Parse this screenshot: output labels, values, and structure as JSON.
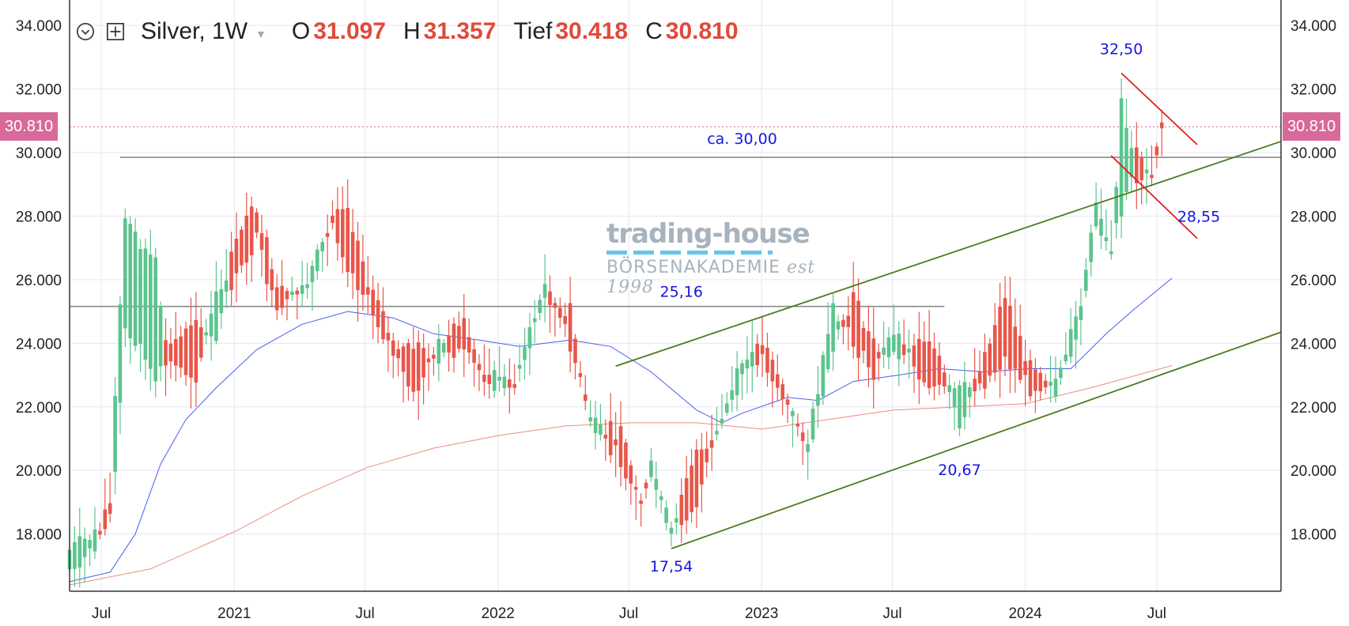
{
  "legend": {
    "symbol": "Silver, 1W",
    "o_label": "O",
    "o_value": "31.097",
    "h_label": "H",
    "h_value": "31.357",
    "l_label": "Tief",
    "l_value": "30.418",
    "c_label": "C",
    "c_value": "30.810",
    "icons": [
      "chevron-down-circle-icon",
      "plus-square-icon",
      "caret-down-icon"
    ]
  },
  "price_tag": "30.810",
  "watermark": {
    "title": "trading-house",
    "subtitle": "BÖRSENAKADEMIE",
    "est": "est 1998"
  },
  "colors": {
    "up": "#5cc48d",
    "down": "#e8564a",
    "ma_short": "#4a5cf0",
    "ma_long": "#f08a80",
    "trend": "#4a7a20",
    "flag": "#e02020",
    "annotation": "#1515e6",
    "price_tag": "#d9699a"
  },
  "chart_data": {
    "type": "candlestick",
    "timeframe": "1W",
    "instrument": "Silver",
    "x_ticks": [
      "Jul",
      "2021",
      "Jul",
      "2022",
      "Jul",
      "2023",
      "Jul",
      "2024",
      "Jul"
    ],
    "x_tick_dates": [
      "2020-07-01",
      "2021-01-01",
      "2021-07-01",
      "2022-01-01",
      "2022-07-01",
      "2023-01-01",
      "2023-07-01",
      "2024-01-01",
      "2024-07-01"
    ],
    "y_ticks": [
      "18.000",
      "20.000",
      "22.000",
      "24.000",
      "26.000",
      "28.000",
      "30.000",
      "32.000",
      "34.000"
    ],
    "ylim": [
      16.2,
      34.8
    ],
    "xlim": [
      "2020-05-18",
      "2024-12-20"
    ],
    "last_close": 30.81,
    "horizontal_levels": [
      {
        "value": 29.85,
        "from": "2020-07-27",
        "to": "2024-12-20"
      },
      {
        "value": 25.16,
        "from": "2020-05-18",
        "to": "2023-09-11"
      }
    ],
    "annotations": [
      {
        "text": "32,50",
        "date": "2024-05-13",
        "value": 32.5
      },
      {
        "text": "ca. 30,00",
        "date": "2022-12-05",
        "value": 29.85
      },
      {
        "text": "28,55",
        "date": "2024-07-22",
        "value": 28.55
      },
      {
        "text": "25,16",
        "date": "2022-09-12",
        "value": 25.16
      },
      {
        "text": "20,67",
        "date": "2023-10-02",
        "value": 20.67
      },
      {
        "text": "17,54",
        "date": "2022-08-29",
        "value": 17.54
      }
    ],
    "trendlines": [
      {
        "name": "",
        "color": "trend",
        "points": [
          [
            "2022-08-29",
            17.54
          ],
          [
            "2024-12-20",
            24.35
          ]
        ]
      },
      {
        "name": "",
        "color": "trend",
        "points": [
          [
            "2022-06-13",
            23.28
          ],
          [
            "2024-12-20",
            30.35
          ]
        ]
      },
      {
        "name": "",
        "color": "flag",
        "points": [
          [
            "2024-05-13",
            32.5
          ],
          [
            "2024-08-26",
            30.25
          ]
        ]
      },
      {
        "name": "",
        "color": "flag",
        "points": [
          [
            "2024-04-29",
            29.9
          ],
          [
            "2024-08-26",
            27.3
          ]
        ]
      }
    ],
    "anchors": [
      [
        "2020-05-18",
        16.9,
        17.5
      ],
      [
        "2020-06-22",
        17.6,
        18.0
      ],
      [
        "2020-07-13",
        19.0,
        18.6
      ],
      [
        "2020-07-20",
        20.0,
        22.3
      ],
      [
        "2020-08-03",
        24.5,
        27.9
      ],
      [
        "2020-09-14",
        23.0,
        26.5
      ],
      [
        "2020-09-28",
        24.0,
        23.4
      ],
      [
        "2020-11-09",
        24.5,
        23.0
      ],
      [
        "2020-12-07",
        24.2,
        25.5
      ],
      [
        "2021-01-04",
        27.5,
        26.0
      ],
      [
        "2021-02-01",
        28.3,
        27.3
      ],
      [
        "2021-03-01",
        26.0,
        24.8
      ],
      [
        "2021-04-12",
        25.5,
        26.0
      ],
      [
        "2021-05-17",
        28.0,
        27.8
      ],
      [
        "2021-06-07",
        28.0,
        26.5
      ],
      [
        "2021-07-05",
        26.0,
        25.3
      ],
      [
        "2021-08-09",
        24.0,
        23.7
      ],
      [
        "2021-09-06",
        24.0,
        22.3
      ],
      [
        "2021-10-11",
        23.5,
        24.0
      ],
      [
        "2021-11-15",
        25.0,
        23.6
      ],
      [
        "2021-12-13",
        22.8,
        23.0
      ],
      [
        "2022-01-24",
        22.6,
        22.8
      ],
      [
        "2022-03-07",
        25.5,
        25.8
      ],
      [
        "2022-04-11",
        25.0,
        24.0
      ],
      [
        "2022-05-09",
        21.5,
        21.6
      ],
      [
        "2022-06-20",
        21.2,
        20.3
      ],
      [
        "2022-07-18",
        19.0,
        19.0
      ],
      [
        "2022-08-01",
        20.0,
        20.1
      ],
      [
        "2022-08-29",
        18.1,
        18.1
      ],
      [
        "2022-10-03",
        20.5,
        19.0
      ],
      [
        "2022-11-07",
        21.5,
        21.6
      ],
      [
        "2022-12-05",
        23.0,
        23.4
      ],
      [
        "2023-01-02",
        24.0,
        23.6
      ],
      [
        "2023-02-06",
        22.3,
        22.0
      ],
      [
        "2023-03-06",
        20.5,
        20.9
      ],
      [
        "2023-04-10",
        24.0,
        25.0
      ],
      [
        "2023-05-08",
        25.5,
        24.0
      ],
      [
        "2023-06-05",
        24.0,
        23.0
      ],
      [
        "2023-07-03",
        23.5,
        24.5
      ],
      [
        "2023-08-07",
        24.0,
        23.0
      ],
      [
        "2023-09-04",
        23.8,
        22.5
      ],
      [
        "2023-10-02",
        21.5,
        22.5
      ],
      [
        "2023-11-06",
        23.5,
        22.8
      ],
      [
        "2023-12-04",
        25.5,
        23.5
      ],
      [
        "2024-01-08",
        23.2,
        22.6
      ],
      [
        "2024-02-12",
        22.3,
        22.9
      ],
      [
        "2024-03-18",
        24.7,
        25.2
      ],
      [
        "2024-04-08",
        27.8,
        28.3
      ],
      [
        "2024-04-29",
        27.0,
        26.7
      ],
      [
        "2024-05-13",
        28.2,
        31.5
      ],
      [
        "2024-06-03",
        30.0,
        29.2
      ],
      [
        "2024-06-24",
        29.2,
        29.3
      ],
      [
        "2024-07-08",
        30.9,
        30.81
      ]
    ],
    "ma_short": [
      [
        "2020-05-18",
        16.5
      ],
      [
        "2020-07-13",
        16.8
      ],
      [
        "2020-08-17",
        18.0
      ],
      [
        "2020-09-21",
        20.2
      ],
      [
        "2020-10-26",
        21.6
      ],
      [
        "2020-12-07",
        22.6
      ],
      [
        "2021-02-01",
        23.8
      ],
      [
        "2021-04-05",
        24.6
      ],
      [
        "2021-06-07",
        25.0
      ],
      [
        "2021-08-09",
        24.8
      ],
      [
        "2021-10-04",
        24.3
      ],
      [
        "2021-12-06",
        24.1
      ],
      [
        "2022-01-31",
        23.9
      ],
      [
        "2022-04-11",
        24.1
      ],
      [
        "2022-06-06",
        23.9
      ],
      [
        "2022-08-01",
        23.1
      ],
      [
        "2022-10-03",
        21.9
      ],
      [
        "2022-11-07",
        21.5
      ],
      [
        "2022-12-05",
        21.8
      ],
      [
        "2023-02-06",
        22.3
      ],
      [
        "2023-03-20",
        22.2
      ],
      [
        "2023-05-08",
        22.8
      ],
      [
        "2023-07-10",
        23.0
      ],
      [
        "2023-09-04",
        23.2
      ],
      [
        "2023-11-06",
        23.1
      ],
      [
        "2024-01-08",
        23.2
      ],
      [
        "2024-03-04",
        23.2
      ],
      [
        "2024-04-22",
        24.3
      ],
      [
        "2024-05-27",
        25.0
      ],
      [
        "2024-07-22",
        26.05
      ]
    ],
    "ma_long": [
      [
        "2020-05-18",
        16.4
      ],
      [
        "2020-09-07",
        16.9
      ],
      [
        "2021-01-04",
        18.1
      ],
      [
        "2021-04-05",
        19.2
      ],
      [
        "2021-07-05",
        20.1
      ],
      [
        "2021-10-04",
        20.7
      ],
      [
        "2022-01-03",
        21.1
      ],
      [
        "2022-04-04",
        21.4
      ],
      [
        "2022-07-04",
        21.5
      ],
      [
        "2022-10-03",
        21.5
      ],
      [
        "2023-01-02",
        21.3
      ],
      [
        "2023-04-03",
        21.6
      ],
      [
        "2023-07-03",
        21.9
      ],
      [
        "2023-10-02",
        22.0
      ],
      [
        "2024-01-01",
        22.1
      ],
      [
        "2024-04-01",
        22.6
      ],
      [
        "2024-07-22",
        23.3
      ]
    ]
  }
}
